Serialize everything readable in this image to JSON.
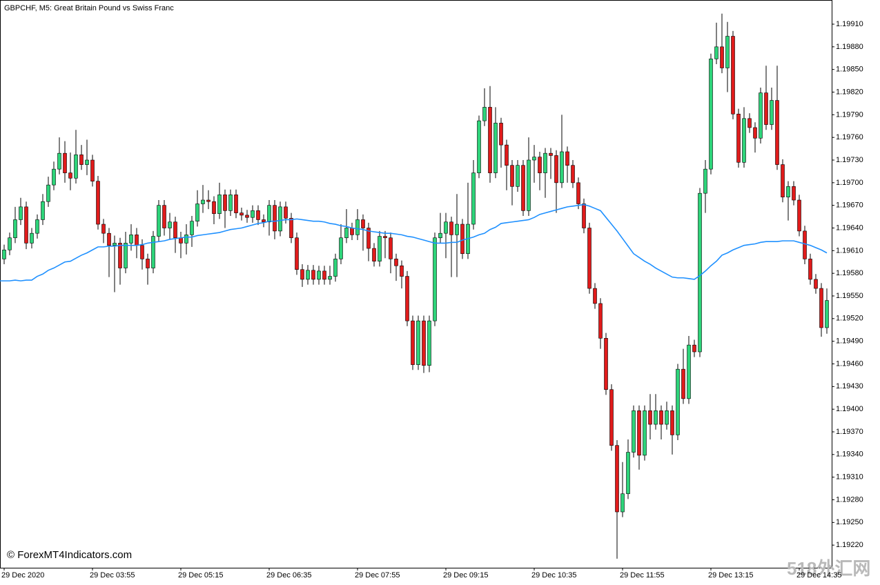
{
  "chart_data": {
    "type": "candlestick",
    "title": "GBPCHF, M5:  Great Britain Pound vs Swiss Franc",
    "watermark": "© ForexMT4Indicators.com",
    "site_logo": "518外汇网",
    "up_color": "#2ed47a",
    "down_color": "#e01b1b",
    "wick_color": "#000000",
    "categories": [
      "29 Dec 2020",
      null,
      null,
      null,
      null,
      null,
      null,
      null,
      null,
      null,
      null,
      null,
      null,
      null,
      null,
      null,
      "29 Dec 03:55",
      null,
      null,
      null,
      null,
      null,
      null,
      null,
      null,
      null,
      null,
      null,
      null,
      null,
      null,
      null,
      "29 Dec 05:15",
      null,
      null,
      null,
      null,
      null,
      null,
      null,
      null,
      null,
      null,
      null,
      null,
      null,
      null,
      null,
      "29 Dec 06:35",
      null,
      null,
      null,
      null,
      null,
      null,
      null,
      null,
      null,
      null,
      null,
      null,
      null,
      null,
      null,
      "29 Dec 07:55",
      null,
      null,
      null,
      null,
      null,
      null,
      null,
      null,
      null,
      null,
      null,
      null,
      null,
      null,
      null,
      "29 Dec 09:15",
      null,
      null,
      null,
      null,
      null,
      null,
      null,
      null,
      null,
      null,
      null,
      null,
      null,
      null,
      null,
      "29 Dec 10:35",
      null,
      null,
      null,
      null,
      null,
      null,
      null,
      null,
      null,
      null,
      null,
      null,
      null,
      null,
      null,
      "29 Dec 11:55",
      null,
      null,
      null,
      null,
      null,
      null,
      null,
      null,
      null,
      null,
      null,
      null,
      null,
      null,
      null,
      "29 Dec 13:15",
      null,
      null,
      null,
      null,
      null,
      null,
      null,
      null,
      null,
      null,
      null,
      null,
      null,
      null,
      null,
      "29 Dec 14:35",
      null,
      null,
      null,
      null,
      null
    ],
    "open": [
      1.19599,
      1.19611,
      1.19627,
      1.19651,
      1.19668,
      1.1962,
      1.19633,
      1.19651,
      1.19675,
      1.19697,
      1.19718,
      1.19739,
      1.19713,
      1.19706,
      1.19737,
      1.19724,
      1.1973,
      1.19702,
      1.19645,
      1.19633,
      1.19617,
      1.1962,
      1.19587,
      1.1962,
      1.19631,
      1.19617,
      1.19599,
      1.19587,
      1.19629,
      1.1967,
      1.1964,
      1.19648,
      1.19627,
      1.1962,
      1.19631,
      1.19649,
      1.19672,
      1.19677,
      1.19675,
      1.19659,
      1.19684,
      1.19663,
      1.19684,
      1.1966,
      1.19657,
      1.19654,
      1.19663,
      1.19651,
      1.19648,
      1.1967,
      1.19636,
      1.19668,
      1.19653,
      1.19627,
      1.19585,
      1.19572,
      1.19584,
      1.19572,
      1.19583,
      1.19572,
      1.19576,
      1.19599,
      1.19627,
      1.1964,
      1.19631,
      1.19651,
      1.1964,
      1.19613,
      1.19596,
      1.19629,
      1.19627,
      1.19599,
      1.1959,
      1.19576,
      1.19517,
      1.19459,
      1.19517,
      1.19458,
      1.19517,
      1.19627,
      1.19633,
      1.19648,
      1.19631,
      1.19645,
      1.19606,
      1.19645,
      1.19713,
      1.19782,
      1.198,
      1.19713,
      1.19779,
      1.1975,
      1.19723,
      1.19695,
      1.19723,
      1.19663,
      1.1973,
      1.19734,
      1.19713,
      1.19739,
      1.19736,
      1.197,
      1.19741,
      1.19723,
      1.197,
      1.19672,
      1.1964,
      1.1956,
      1.1954,
      1.19494,
      1.19426,
      1.19352,
      1.19264,
      1.19288,
      1.19343,
      1.19398,
      1.19339,
      1.19398,
      1.1938,
      1.19398,
      1.1938,
      1.19398,
      1.19366,
      1.19453,
      1.19414,
      1.19485,
      1.19476,
      1.19686,
      1.19718,
      1.19864,
      1.1988,
      1.19852,
      1.19894,
      1.19791,
      1.19727,
      1.19785,
      1.19773,
      1.19759,
      1.19819,
      1.19777,
      1.19809,
      1.19724,
      1.19681,
      1.19695,
      1.19677,
      1.19636,
      1.19599,
      1.19572,
      1.1956,
      1.19508
    ],
    "high": [
      1.19618,
      1.19634,
      1.19668,
      1.1968,
      1.19675,
      1.1964,
      1.19658,
      1.19685,
      1.19708,
      1.19728,
      1.1976,
      1.19755,
      1.1974,
      1.1977,
      1.1975,
      1.19757,
      1.19737,
      1.19709,
      1.19652,
      1.1964,
      1.1963,
      1.19627,
      1.19635,
      1.19645,
      1.1964,
      1.19625,
      1.19606,
      1.19636,
      1.19677,
      1.19677,
      1.1966,
      1.19655,
      1.19635,
      1.19645,
      1.19656,
      1.1969,
      1.19697,
      1.1969,
      1.19682,
      1.197,
      1.19691,
      1.19691,
      1.19691,
      1.19667,
      1.19664,
      1.1967,
      1.1967,
      1.19658,
      1.19677,
      1.19677,
      1.19675,
      1.19675,
      1.1966,
      1.19634,
      1.19592,
      1.19591,
      1.19591,
      1.1959,
      1.1959,
      1.1959,
      1.19606,
      1.19645,
      1.19665,
      1.19647,
      1.19665,
      1.19658,
      1.19647,
      1.1962,
      1.19636,
      1.19636,
      1.19634,
      1.19606,
      1.19597,
      1.19583,
      1.19524,
      1.19524,
      1.19524,
      1.19524,
      1.19634,
      1.1966,
      1.1966,
      1.19655,
      1.19685,
      1.19652,
      1.197,
      1.1973,
      1.19789,
      1.19825,
      1.19828,
      1.198,
      1.19786,
      1.19757,
      1.1973,
      1.1973,
      1.1973,
      1.1976,
      1.1975,
      1.19741,
      1.19746,
      1.19746,
      1.19743,
      1.1979,
      1.19748,
      1.1973,
      1.19707,
      1.19679,
      1.19647,
      1.19567,
      1.19547,
      1.19501,
      1.19433,
      1.19359,
      1.1933,
      1.1936,
      1.19405,
      1.19405,
      1.19405,
      1.1942,
      1.1942,
      1.19405,
      1.1941,
      1.19405,
      1.1946,
      1.1948,
      1.19497,
      1.19492,
      1.19693,
      1.1973,
      1.19871,
      1.19912,
      1.19924,
      1.19913,
      1.19901,
      1.19798,
      1.198,
      1.19792,
      1.1978,
      1.19826,
      1.19855,
      1.19826,
      1.19855,
      1.19731,
      1.19702,
      1.19702,
      1.19684,
      1.19643,
      1.19606,
      1.19579,
      1.19567,
      1.1956
    ],
    "low": [
      1.19592,
      1.19604,
      1.1962,
      1.19644,
      1.19612,
      1.19613,
      1.19626,
      1.19644,
      1.19668,
      1.1969,
      1.19711,
      1.197,
      1.1969,
      1.19699,
      1.19717,
      1.1971,
      1.19695,
      1.19638,
      1.1962,
      1.19575,
      1.19555,
      1.19565,
      1.1958,
      1.1961,
      1.196,
      1.19585,
      1.19565,
      1.1958,
      1.19622,
      1.1963,
      1.19625,
      1.19607,
      1.196,
      1.19605,
      1.19615,
      1.19642,
      1.1966,
      1.19665,
      1.19645,
      1.19652,
      1.1964,
      1.19656,
      1.19653,
      1.1965,
      1.19647,
      1.19647,
      1.19644,
      1.19641,
      1.1963,
      1.19625,
      1.19629,
      1.19646,
      1.1962,
      1.19578,
      1.19562,
      1.19565,
      1.19565,
      1.19565,
      1.19565,
      1.19565,
      1.19569,
      1.19592,
      1.1962,
      1.19624,
      1.19624,
      1.1961,
      1.19596,
      1.19589,
      1.19589,
      1.196,
      1.1958,
      1.1957,
      1.1956,
      1.1951,
      1.19452,
      1.19452,
      1.19448,
      1.19449,
      1.1951,
      1.1962,
      1.196,
      1.19575,
      1.19575,
      1.19599,
      1.19599,
      1.19638,
      1.19706,
      1.19775,
      1.197,
      1.19706,
      1.1972,
      1.1969,
      1.1967,
      1.19688,
      1.19656,
      1.19656,
      1.197,
      1.1969,
      1.1968,
      1.19705,
      1.1966,
      1.19693,
      1.197,
      1.19693,
      1.19665,
      1.19633,
      1.19553,
      1.19533,
      1.1948,
      1.19419,
      1.19345,
      1.19202,
      1.19257,
      1.19281,
      1.19336,
      1.1932,
      1.19332,
      1.1936,
      1.19373,
      1.1936,
      1.19373,
      1.1934,
      1.19359,
      1.19407,
      1.19407,
      1.19469,
      1.19469,
      1.1966,
      1.19711,
      1.19857,
      1.19845,
      1.1982,
      1.19784,
      1.1972,
      1.1972,
      1.19766,
      1.1974,
      1.19752,
      1.1977,
      1.1977,
      1.19717,
      1.19674,
      1.1965,
      1.1967,
      1.19629,
      1.19592,
      1.19565,
      1.19553,
      1.19496,
      1.195
    ],
    "close": [
      1.19611,
      1.19627,
      1.19651,
      1.19668,
      1.1962,
      1.19633,
      1.19651,
      1.19675,
      1.19697,
      1.19718,
      1.19739,
      1.19713,
      1.19706,
      1.19737,
      1.19724,
      1.1973,
      1.19702,
      1.19645,
      1.19633,
      1.19617,
      1.1962,
      1.19587,
      1.1962,
      1.19631,
      1.19617,
      1.19599,
      1.19587,
      1.19629,
      1.1967,
      1.1964,
      1.19648,
      1.19627,
      1.1962,
      1.19631,
      1.19649,
      1.19672,
      1.19677,
      1.19675,
      1.19659,
      1.19684,
      1.19663,
      1.19684,
      1.1966,
      1.19657,
      1.19654,
      1.19663,
      1.19651,
      1.19648,
      1.1967,
      1.19636,
      1.19668,
      1.19653,
      1.19627,
      1.19585,
      1.19572,
      1.19584,
      1.19572,
      1.19583,
      1.19572,
      1.19576,
      1.19599,
      1.19627,
      1.1964,
      1.19631,
      1.19651,
      1.1964,
      1.19613,
      1.19596,
      1.19629,
      1.19627,
      1.19599,
      1.1959,
      1.19576,
      1.19517,
      1.19459,
      1.19517,
      1.19458,
      1.19517,
      1.19627,
      1.19633,
      1.19648,
      1.19631,
      1.19645,
      1.19606,
      1.19645,
      1.19713,
      1.19782,
      1.198,
      1.19713,
      1.19779,
      1.1975,
      1.19723,
      1.19695,
      1.19723,
      1.19663,
      1.1973,
      1.19734,
      1.19713,
      1.19739,
      1.19736,
      1.197,
      1.19741,
      1.19723,
      1.197,
      1.19672,
      1.1964,
      1.1956,
      1.1954,
      1.19494,
      1.19426,
      1.19352,
      1.19264,
      1.19288,
      1.19343,
      1.19398,
      1.19339,
      1.19398,
      1.1938,
      1.19398,
      1.1938,
      1.19398,
      1.19366,
      1.19453,
      1.19414,
      1.19485,
      1.19476,
      1.19686,
      1.19718,
      1.19864,
      1.1988,
      1.19852,
      1.19894,
      1.19791,
      1.19727,
      1.19785,
      1.19773,
      1.19759,
      1.19819,
      1.19777,
      1.19809,
      1.19724,
      1.19681,
      1.19695,
      1.19677,
      1.19636,
      1.19599,
      1.19572,
      1.1956,
      1.19508,
      1.19544
    ],
    "moving_average": {
      "color": "#1e90ff",
      "values": [
        1.1957,
        1.1957,
        1.19571,
        1.1957,
        1.19571,
        1.19571,
        1.19576,
        1.19579,
        1.19584,
        1.19587,
        1.19591,
        1.19595,
        1.19596,
        1.196,
        1.19604,
        1.19607,
        1.19611,
        1.19615,
        1.19615,
        1.19616,
        1.19616,
        1.19617,
        1.19617,
        1.19617,
        1.19617,
        1.19618,
        1.1962,
        1.19621,
        1.19622,
        1.19623,
        1.19625,
        1.19626,
        1.19627,
        1.19628,
        1.19628,
        1.1963,
        1.19631,
        1.19632,
        1.19633,
        1.19634,
        1.19636,
        1.19638,
        1.19639,
        1.1964,
        1.19642,
        1.19644,
        1.19646,
        1.19647,
        1.19649,
        1.19649,
        1.1965,
        1.19651,
        1.19651,
        1.19652,
        1.19651,
        1.1965,
        1.19649,
        1.19649,
        1.19648,
        1.19646,
        1.19645,
        1.19643,
        1.19642,
        1.1964,
        1.19639,
        1.19638,
        1.19636,
        1.19635,
        1.19634,
        1.19633,
        1.19633,
        1.19632,
        1.19631,
        1.19629,
        1.19628,
        1.19626,
        1.19624,
        1.19622,
        1.1962,
        1.1962,
        1.1962,
        1.19621,
        1.19621,
        1.19624,
        1.19626,
        1.19628,
        1.19631,
        1.19633,
        1.19638,
        1.19641,
        1.19646,
        1.19647,
        1.19648,
        1.19649,
        1.1965,
        1.19651,
        1.19654,
        1.19658,
        1.1966,
        1.19662,
        1.19664,
        1.19666,
        1.19668,
        1.19669,
        1.1967,
        1.19671,
        1.19669,
        1.19666,
        1.19663,
        1.19654,
        1.19645,
        1.19636,
        1.19626,
        1.19616,
        1.19606,
        1.19601,
        1.19596,
        1.19592,
        1.19587,
        1.19583,
        1.19579,
        1.19575,
        1.19574,
        1.19574,
        1.19573,
        1.19572,
        1.19577,
        1.19583,
        1.1959,
        1.19596,
        1.19604,
        1.19607,
        1.19611,
        1.19614,
        1.19617,
        1.19618,
        1.19619,
        1.19621,
        1.19622,
        1.19622,
        1.19622,
        1.19623,
        1.19623,
        1.19623,
        1.19621,
        1.19619,
        1.19617,
        1.19614,
        1.19611,
        1.19607
      ]
    },
    "ylim": [
      1.1919,
      1.19942
    ],
    "yticks": [
      {
        "value": 1.1922,
        "label": "1.19220"
      },
      {
        "value": 1.1925,
        "label": "1.19250"
      },
      {
        "value": 1.1928,
        "label": "1.19280"
      },
      {
        "value": 1.1931,
        "label": "1.19310"
      },
      {
        "value": 1.1934,
        "label": "1.19340"
      },
      {
        "value": 1.1937,
        "label": "1.19370"
      },
      {
        "value": 1.194,
        "label": "1.19400"
      },
      {
        "value": 1.1943,
        "label": "1.19430"
      },
      {
        "value": 1.1946,
        "label": "1.19460"
      },
      {
        "value": 1.1949,
        "label": "1.19490"
      },
      {
        "value": 1.1952,
        "label": "1.19520"
      },
      {
        "value": 1.1955,
        "label": "1.19550"
      },
      {
        "value": 1.1958,
        "label": "1.19580"
      },
      {
        "value": 1.1961,
        "label": "1.19610"
      },
      {
        "value": 1.1964,
        "label": "1.19640"
      },
      {
        "value": 1.1967,
        "label": "1.19670"
      },
      {
        "value": 1.197,
        "label": "1.19700"
      },
      {
        "value": 1.1973,
        "label": "1.19730"
      },
      {
        "value": 1.1976,
        "label": "1.19760"
      },
      {
        "value": 1.1979,
        "label": "1.19790"
      },
      {
        "value": 1.1982,
        "label": "1.19820"
      },
      {
        "value": 1.1985,
        "label": "1.19850"
      },
      {
        "value": 1.1988,
        "label": "1.19880"
      },
      {
        "value": 1.1991,
        "label": "1.19910"
      }
    ],
    "grid": false
  }
}
